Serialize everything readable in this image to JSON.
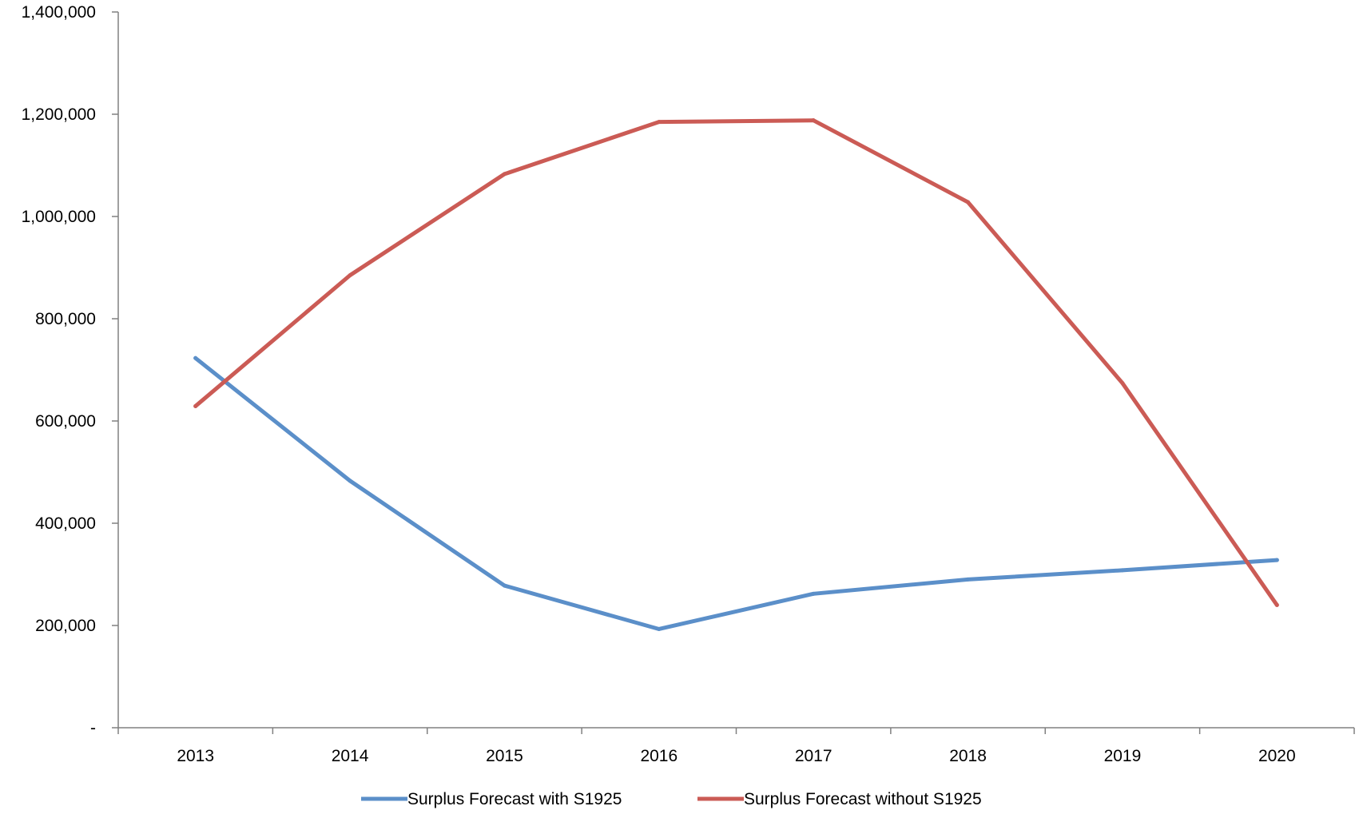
{
  "chart_data": {
    "type": "line",
    "title": "",
    "xlabel": "",
    "ylabel": "",
    "categories": [
      "2013",
      "2014",
      "2015",
      "2016",
      "2017",
      "2018",
      "2019",
      "2020"
    ],
    "ylim": [
      0,
      1400000
    ],
    "y_ticks": [
      0,
      200000,
      400000,
      600000,
      800000,
      1000000,
      1200000,
      1400000
    ],
    "y_tick_labels": [
      "-",
      "200,000",
      "400,000",
      "600,000",
      "800,000",
      "1,000,000",
      "1,200,000",
      "1,400,000"
    ],
    "grid": false,
    "legend_position": "bottom",
    "series": [
      {
        "name": "Surplus Forecast with S1925",
        "color": "#5B8FC9",
        "values": [
          723000,
          483000,
          278000,
          193000,
          262000,
          290000,
          308000,
          328000
        ]
      },
      {
        "name": "Surplus Forecast without S1925",
        "color": "#CB5B55",
        "values": [
          629000,
          885000,
          1083000,
          1185000,
          1188000,
          1028000,
          674000,
          240000
        ]
      }
    ]
  }
}
